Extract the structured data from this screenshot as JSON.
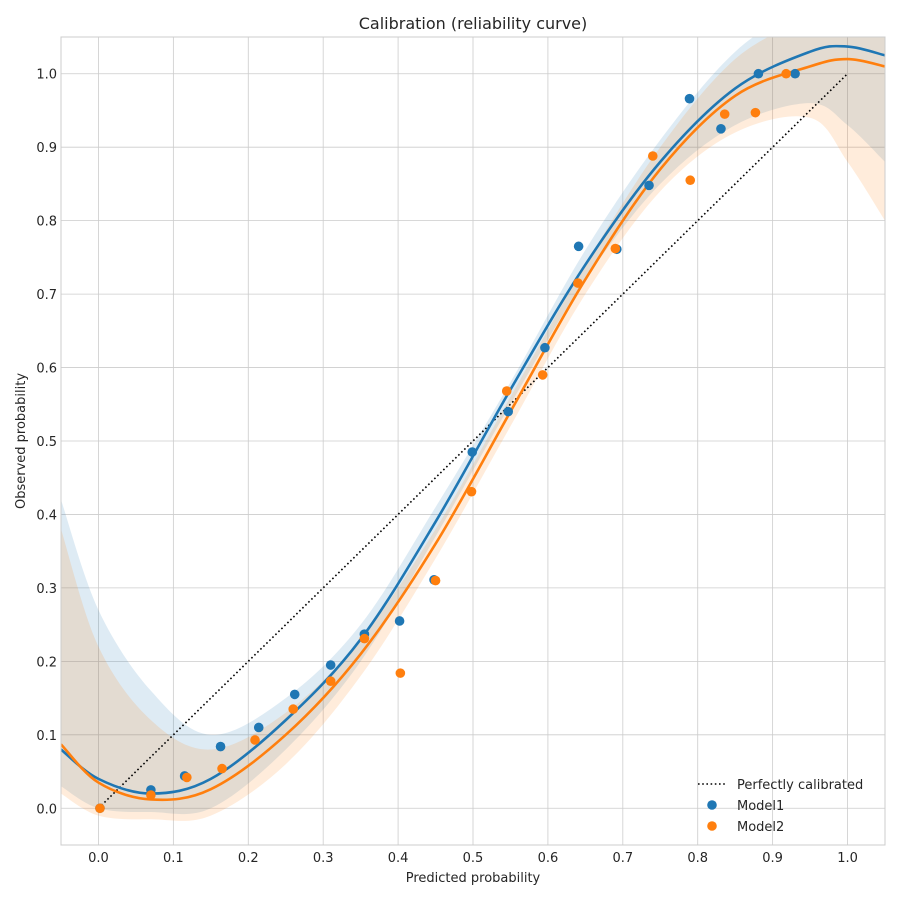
{
  "chart_data": {
    "type": "scatter",
    "title": "Calibration (reliability curve)",
    "xlabel": "Predicted probability",
    "ylabel": "Observed probability",
    "xlim": [
      -0.05,
      1.05
    ],
    "ylim": [
      -0.05,
      1.05
    ],
    "xticks": [
      "0.0",
      "0.1",
      "0.2",
      "0.3",
      "0.4",
      "0.5",
      "0.6",
      "0.7",
      "0.8",
      "0.9",
      "1.0"
    ],
    "yticks": [
      "0.0",
      "0.1",
      "0.2",
      "0.3",
      "0.4",
      "0.5",
      "0.6",
      "0.7",
      "0.8",
      "0.9",
      "1.0"
    ],
    "grid": true,
    "legend_position": "bottom-right",
    "reference_line": {
      "name": "Perfectly calibrated",
      "x": [
        0,
        1
      ],
      "y": [
        0,
        1
      ],
      "style": "dotted",
      "color": "#000000"
    },
    "series": [
      {
        "name": "Model1",
        "color": "#1f77b4",
        "points": [
          [
            0.002,
            0.0
          ],
          [
            0.07,
            0.025
          ],
          [
            0.115,
            0.044
          ],
          [
            0.163,
            0.084
          ],
          [
            0.214,
            0.11
          ],
          [
            0.262,
            0.155
          ],
          [
            0.31,
            0.195
          ],
          [
            0.355,
            0.237
          ],
          [
            0.402,
            0.255
          ],
          [
            0.448,
            0.311
          ],
          [
            0.499,
            0.485
          ],
          [
            0.547,
            0.54
          ],
          [
            0.596,
            0.627
          ],
          [
            0.641,
            0.765
          ],
          [
            0.692,
            0.761
          ],
          [
            0.735,
            0.848
          ],
          [
            0.789,
            0.966
          ],
          [
            0.831,
            0.925
          ],
          [
            0.881,
            1.0
          ],
          [
            0.93,
            1.0
          ]
        ],
        "fit": [
          [
            -0.05,
            0.08
          ],
          [
            0.0,
            0.04
          ],
          [
            0.07,
            0.02
          ],
          [
            0.15,
            0.04
          ],
          [
            0.25,
            0.12
          ],
          [
            0.35,
            0.23
          ],
          [
            0.45,
            0.39
          ],
          [
            0.55,
            0.57
          ],
          [
            0.65,
            0.74
          ],
          [
            0.75,
            0.88
          ],
          [
            0.85,
            0.98
          ],
          [
            0.95,
            1.03
          ],
          [
            1.0,
            1.037
          ],
          [
            1.05,
            1.025
          ]
        ],
        "band_upper": [
          [
            -0.05,
            0.42
          ],
          [
            0.0,
            0.27
          ],
          [
            0.07,
            0.16
          ],
          [
            0.15,
            0.1
          ],
          [
            0.25,
            0.15
          ],
          [
            0.35,
            0.25
          ],
          [
            0.45,
            0.41
          ],
          [
            0.55,
            0.58
          ],
          [
            0.65,
            0.76
          ],
          [
            0.75,
            0.91
          ],
          [
            0.85,
            1.03
          ],
          [
            0.95,
            1.1
          ],
          [
            1.0,
            1.15
          ],
          [
            1.05,
            1.2
          ]
        ],
        "band_lower": [
          [
            -0.05,
            0.03
          ],
          [
            0.0,
            0.0
          ],
          [
            0.07,
            -0.005
          ],
          [
            0.15,
            0.0
          ],
          [
            0.25,
            0.08
          ],
          [
            0.35,
            0.2
          ],
          [
            0.45,
            0.37
          ],
          [
            0.55,
            0.55
          ],
          [
            0.65,
            0.72
          ],
          [
            0.75,
            0.85
          ],
          [
            0.85,
            0.93
          ],
          [
            0.95,
            0.96
          ],
          [
            1.0,
            0.93
          ],
          [
            1.05,
            0.88
          ]
        ]
      },
      {
        "name": "Model2",
        "color": "#ff7f0e",
        "points": [
          [
            0.002,
            0.0
          ],
          [
            0.07,
            0.018
          ],
          [
            0.118,
            0.042
          ],
          [
            0.165,
            0.054
          ],
          [
            0.209,
            0.093
          ],
          [
            0.26,
            0.135
          ],
          [
            0.31,
            0.173
          ],
          [
            0.355,
            0.231
          ],
          [
            0.403,
            0.184
          ],
          [
            0.45,
            0.31
          ],
          [
            0.498,
            0.431
          ],
          [
            0.545,
            0.568
          ],
          [
            0.593,
            0.59
          ],
          [
            0.64,
            0.715
          ],
          [
            0.69,
            0.762
          ],
          [
            0.74,
            0.888
          ],
          [
            0.79,
            0.855
          ],
          [
            0.836,
            0.945
          ],
          [
            0.877,
            0.947
          ],
          [
            0.918,
            1.0
          ]
        ],
        "fit": [
          [
            -0.05,
            0.087
          ],
          [
            0.0,
            0.035
          ],
          [
            0.07,
            0.012
          ],
          [
            0.15,
            0.026
          ],
          [
            0.25,
            0.1
          ],
          [
            0.35,
            0.21
          ],
          [
            0.45,
            0.36
          ],
          [
            0.55,
            0.54
          ],
          [
            0.65,
            0.72
          ],
          [
            0.75,
            0.87
          ],
          [
            0.85,
            0.97
          ],
          [
            0.95,
            1.01
          ],
          [
            1.0,
            1.02
          ],
          [
            1.05,
            1.01
          ]
        ],
        "band_upper": [
          [
            -0.05,
            0.38
          ],
          [
            0.0,
            0.22
          ],
          [
            0.07,
            0.12
          ],
          [
            0.15,
            0.08
          ],
          [
            0.25,
            0.13
          ],
          [
            0.35,
            0.23
          ],
          [
            0.45,
            0.38
          ],
          [
            0.55,
            0.56
          ],
          [
            0.65,
            0.74
          ],
          [
            0.75,
            0.9
          ],
          [
            0.85,
            1.02
          ],
          [
            0.95,
            1.08
          ],
          [
            1.0,
            1.12
          ],
          [
            1.05,
            1.16
          ]
        ],
        "band_lower": [
          [
            -0.05,
            0.02
          ],
          [
            0.0,
            -0.01
          ],
          [
            0.07,
            -0.015
          ],
          [
            0.15,
            -0.01
          ],
          [
            0.25,
            0.06
          ],
          [
            0.35,
            0.18
          ],
          [
            0.45,
            0.34
          ],
          [
            0.55,
            0.52
          ],
          [
            0.65,
            0.7
          ],
          [
            0.75,
            0.84
          ],
          [
            0.85,
            0.92
          ],
          [
            0.95,
            0.94
          ],
          [
            1.0,
            0.88
          ],
          [
            1.05,
            0.8
          ]
        ]
      }
    ]
  }
}
